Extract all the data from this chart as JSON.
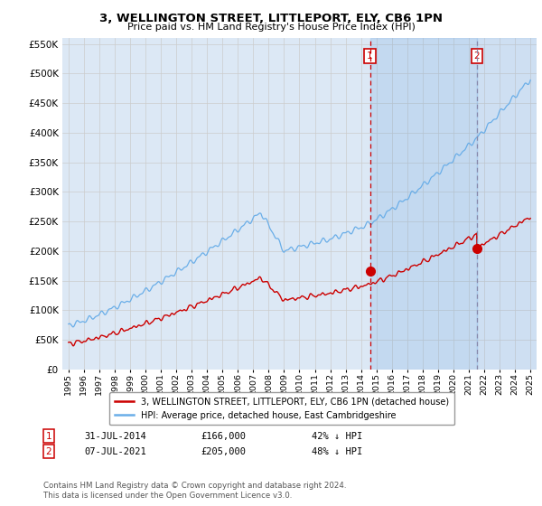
{
  "title": "3, WELLINGTON STREET, LITTLEPORT, ELY, CB6 1PN",
  "subtitle": "Price paid vs. HM Land Registry's House Price Index (HPI)",
  "legend_line1": "3, WELLINGTON STREET, LITTLEPORT, ELY, CB6 1PN (detached house)",
  "legend_line2": "HPI: Average price, detached house, East Cambridgeshire",
  "annotation1_label": "1",
  "annotation1_date": "31-JUL-2014",
  "annotation1_price": "£166,000",
  "annotation1_pct": "42% ↓ HPI",
  "annotation2_label": "2",
  "annotation2_date": "07-JUL-2021",
  "annotation2_price": "£205,000",
  "annotation2_pct": "48% ↓ HPI",
  "footnote": "Contains HM Land Registry data © Crown copyright and database right 2024.\nThis data is licensed under the Open Government Licence v3.0.",
  "hpi_color": "#6aaee8",
  "price_color": "#cc0000",
  "vline1_color": "#cc0000",
  "vline2_color": "#8888aa",
  "grid_color": "#cccccc",
  "plot_bg_color": "#dce8f5",
  "fig_bg_color": "#ffffff",
  "ylim_min": 0,
  "ylim_max": 560000,
  "purchase1_year": 2014.58,
  "purchase1_value": 166000,
  "purchase2_year": 2021.52,
  "purchase2_value": 205000,
  "hpi_at_purchase1": 284000,
  "hpi_at_purchase2": 390000
}
